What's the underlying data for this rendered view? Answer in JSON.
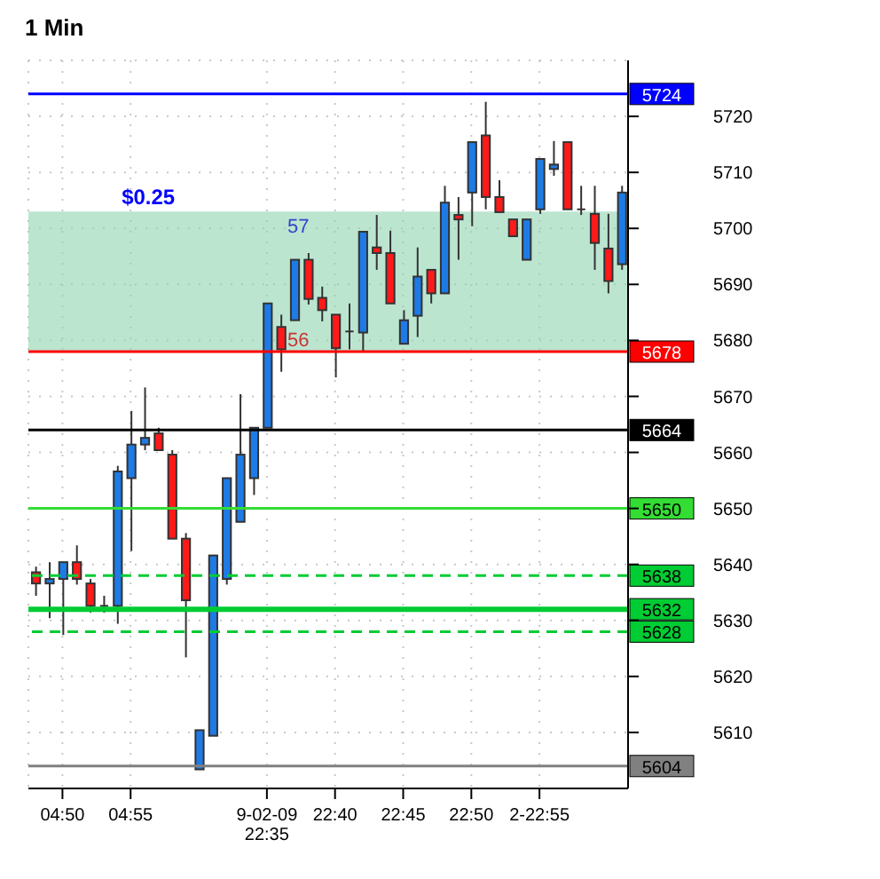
{
  "chart_data": {
    "type": "candlestick",
    "title": "1 Min",
    "categories": [
      null,
      null,
      "04:50",
      null,
      null,
      null,
      null,
      "04:55",
      null,
      null,
      null,
      null,
      null,
      null,
      null,
      null,
      null,
      "9-02-09 22:35",
      null,
      null,
      null,
      null,
      "22:40",
      null,
      null,
      null,
      null,
      "22:45",
      null,
      null,
      null,
      null,
      "22:50",
      null,
      null,
      null,
      null,
      "2-22:55",
      null,
      null,
      null,
      null,
      null,
      null
    ],
    "ohlc": [
      [
        5638.6,
        5639.6,
        5634.4,
        5636.6
      ],
      [
        5636.6,
        5640.4,
        5630.4,
        5637.4
      ],
      [
        5637.4,
        5640.4,
        5627.4,
        5640.4
      ],
      [
        5640.4,
        5643.4,
        5636.4,
        5637.4
      ],
      [
        5636.6,
        5637.4,
        5631.4,
        5632.6
      ],
      [
        5632.6,
        5634.4,
        5631.4,
        5632.6
      ],
      [
        5632.6,
        5657.6,
        5629.4,
        5656.6
      ],
      [
        5655.4,
        5667.4,
        5642.4,
        5661.4
      ],
      [
        5661.4,
        5671.6,
        5660.4,
        5662.6
      ],
      [
        5663.4,
        5664.4,
        5660.4,
        5660.4
      ],
      [
        5659.6,
        5660.4,
        5644.6,
        5644.6
      ],
      [
        5644.6,
        5645.6,
        5623.4,
        5633.6
      ],
      [
        5603.4,
        5610.4,
        5603.4,
        5610.4
      ],
      [
        5609.4,
        5641.6,
        5609.4,
        5641.6
      ],
      [
        5637.4,
        5655.4,
        5636.4,
        5655.4
      ],
      [
        5647.6,
        5670.4,
        5647.6,
        5659.6
      ],
      [
        5655.4,
        5664.4,
        5652.4,
        5664.4
      ],
      [
        5664.4,
        5686.6,
        5664.4,
        5686.6
      ],
      [
        5682.4,
        5684.6,
        5674.4,
        5678.4
      ],
      [
        5683.6,
        5694.4,
        5683.6,
        5694.4
      ],
      [
        5694.4,
        5695.6,
        5686.4,
        5687.4
      ],
      [
        5687.6,
        5689.6,
        5683.4,
        5685.4
      ],
      [
        5684.6,
        5684.6,
        5673.4,
        5678.6
      ],
      [
        5681.6,
        5686.6,
        5678.4,
        5681.6
      ],
      [
        5681.4,
        5699.4,
        5677.9,
        5699.4
      ],
      [
        5696.6,
        5702.4,
        5692.6,
        5695.6
      ],
      [
        5695.6,
        5699.6,
        5686.6,
        5686.6
      ],
      [
        5679.4,
        5685.4,
        5679.4,
        5683.6
      ],
      [
        5684.4,
        5696.6,
        5680.6,
        5691.4
      ],
      [
        5692.6,
        5692.6,
        5686.6,
        5688.4
      ],
      [
        5688.4,
        5707.6,
        5688.4,
        5704.6
      ],
      [
        5702.4,
        5705.6,
        5694.4,
        5701.6
      ],
      [
        5706.4,
        5715.4,
        5700.4,
        5715.4
      ],
      [
        5716.6,
        5722.6,
        5703.4,
        5705.6
      ],
      [
        5705.6,
        5708.6,
        5702.9,
        5702.9
      ],
      [
        5701.6,
        5701.6,
        5698.6,
        5698.6
      ],
      [
        5694.4,
        5701.6,
        5694.4,
        5701.6
      ],
      [
        5703.4,
        5712.4,
        5702.6,
        5712.4
      ],
      [
        5710.6,
        5715.6,
        5709.4,
        5711.4
      ],
      [
        5715.4,
        5715.4,
        5703.4,
        5703.4
      ],
      [
        5703.4,
        5707.6,
        5702.4,
        5703.4
      ],
      [
        5702.6,
        5707.6,
        5692.6,
        5697.4
      ],
      [
        5696.4,
        5702.6,
        5688.4,
        5690.6
      ],
      [
        5693.6,
        5707.6,
        5692.6,
        5706.4
      ]
    ],
    "colors": [
      "#ff1a1a",
      "#1e7be6",
      "#1e7be6",
      "#ff1a1a",
      "#ff1a1a",
      "#333333",
      "#1e7be6",
      "#1e7be6",
      "#1e7be6",
      "#ff1a1a",
      "#ff1a1a",
      "#ff1a1a",
      "#1e7be6",
      "#1e7be6",
      "#1e7be6",
      "#1e7be6",
      "#1e7be6",
      "#1e7be6",
      "#ff1a1a",
      "#1e7be6",
      "#ff1a1a",
      "#ff1a1a",
      "#ff1a1a",
      "#333333",
      "#1e7be6",
      "#ff1a1a",
      "#ff1a1a",
      "#1e7be6",
      "#1e7be6",
      "#ff1a1a",
      "#1e7be6",
      "#ff1a1a",
      "#1e7be6",
      "#ff1a1a",
      "#ff1a1a",
      "#ff1a1a",
      "#1e7be6",
      "#1e7be6",
      "#1e7be6",
      "#ff1a1a",
      "#333333",
      "#ff1a1a",
      "#ff1a1a",
      "#1e7be6"
    ],
    "ylim": [
      5600,
      5730
    ],
    "yticks": [
      5610,
      5620,
      5630,
      5640,
      5650,
      5660,
      5670,
      5680,
      5690,
      5700,
      5710,
      5720
    ],
    "grid": true,
    "ref_lines": [
      {
        "axis": "y",
        "value": 5724,
        "label": "5724",
        "color": "#0000ff",
        "line_style": "solid"
      },
      {
        "axis": "y",
        "value": 5678,
        "label": "5678",
        "color": "#ff0000",
        "line_style": "solid"
      },
      {
        "axis": "y",
        "value": 5664,
        "label": "5664",
        "color": "#000000",
        "line_style": "solid"
      },
      {
        "axis": "y",
        "value": 5650,
        "label": "5650",
        "color": "#33dd33",
        "line_style": "solid"
      },
      {
        "axis": "y",
        "value": 5638,
        "label": "5638",
        "color": "#00cc33",
        "line_style": "dashed"
      },
      {
        "axis": "y",
        "value": 5632,
        "label": "5632",
        "color": "#00cc33",
        "line_style": "solid"
      },
      {
        "axis": "y",
        "value": 5628,
        "label": "5628",
        "color": "#00cc33",
        "line_style": "dashed"
      },
      {
        "axis": "y",
        "value": 5604,
        "label": "5604",
        "color": "#808080",
        "line_style": "solid"
      }
    ],
    "bands": [
      {
        "axis": "y",
        "from": 5678,
        "to": 5703,
        "color": "#8fd4b0"
      }
    ],
    "annotations": [
      "57",
      "56",
      "$0.25"
    ]
  }
}
